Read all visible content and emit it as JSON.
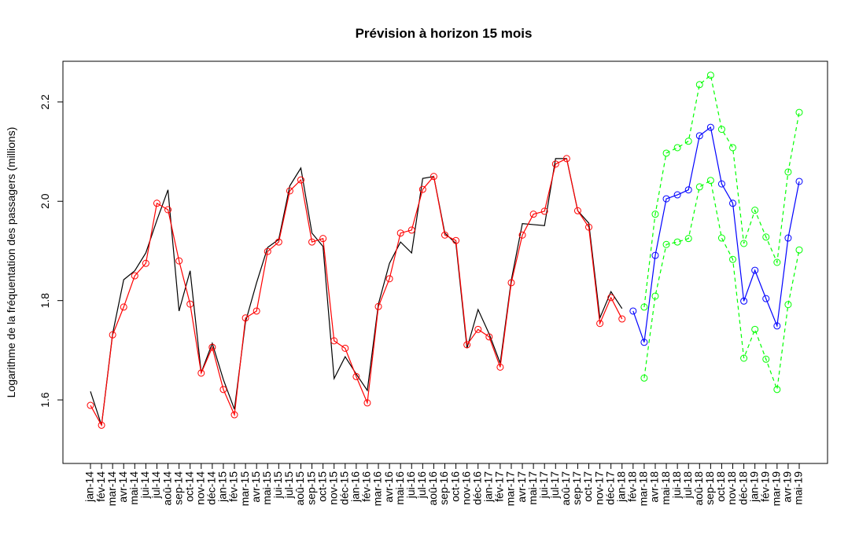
{
  "chart_data": {
    "type": "line",
    "title": "Prévision à horizon 15 mois",
    "y_label": "Logarithme de la fréquentation des passagers (millions)",
    "categories": [
      "jan-14",
      "fév-14",
      "mar-14",
      "avr-14",
      "mai-14",
      "jui-14",
      "jul-14",
      "aoû-14",
      "sep-14",
      "oct-14",
      "nov-14",
      "déc-14",
      "jan-15",
      "fév-15",
      "mar-15",
      "avr-15",
      "mai-15",
      "jui-15",
      "jul-15",
      "aoû-15",
      "sep-15",
      "oct-15",
      "nov-15",
      "déc-15",
      "jan-16",
      "fév-16",
      "mar-16",
      "avr-16",
      "mai-16",
      "jui-16",
      "jul-16",
      "aoû-16",
      "sep-16",
      "oct-16",
      "nov-16",
      "déc-16",
      "jan-17",
      "fév-17",
      "mar-17",
      "avr-17",
      "mai-17",
      "jui-17",
      "jul-17",
      "aoû-17",
      "sep-17",
      "oct-17",
      "nov-17",
      "déc-17",
      "jan-18",
      "fév-18",
      "mar-18",
      "avr-18",
      "mai-18",
      "jui-18",
      "jul-18",
      "aoû-18",
      "sep-18",
      "oct-18",
      "nov-18",
      "déc-18",
      "jan-19",
      "fév-19",
      "mar-19",
      "avr-19",
      "mai-19"
    ],
    "series": [
      {
        "color": "#000000",
        "marker": false,
        "dashed": false,
        "values": [
          1.617,
          1.549,
          1.733,
          1.842,
          1.86,
          1.896,
          1.962,
          2.023,
          1.779,
          1.86,
          1.655,
          1.714,
          1.641,
          1.581,
          1.757,
          1.836,
          1.907,
          1.923,
          2.031,
          2.067,
          1.936,
          1.909,
          1.643,
          1.687,
          1.652,
          1.619,
          1.793,
          1.875,
          1.918,
          1.896,
          2.046,
          2.05,
          1.936,
          1.915,
          1.704,
          1.782,
          1.733,
          1.674,
          1.841,
          1.955,
          1.953,
          1.951,
          2.086,
          2.086,
          1.981,
          1.956,
          1.765,
          1.818,
          1.784,
          null,
          null,
          null,
          null,
          null,
          null,
          null,
          null,
          null,
          null,
          null,
          null,
          null,
          null,
          null,
          null
        ]
      },
      {
        "color": "#ff0000",
        "marker": true,
        "dashed": false,
        "values": [
          1.589,
          1.549,
          1.731,
          1.787,
          1.85,
          1.875,
          1.996,
          1.983,
          1.88,
          1.793,
          1.654,
          1.706,
          1.621,
          1.57,
          1.765,
          1.779,
          1.899,
          1.918,
          2.021,
          2.043,
          1.918,
          1.925,
          1.719,
          1.704,
          1.647,
          1.594,
          1.788,
          1.844,
          1.936,
          1.942,
          2.024,
          2.05,
          1.932,
          1.921,
          1.711,
          1.742,
          1.727,
          1.666,
          1.836,
          1.932,
          1.974,
          1.98,
          2.075,
          2.086,
          1.981,
          1.948,
          1.754,
          1.806,
          1.763,
          null,
          null,
          null,
          null,
          null,
          null,
          null,
          null,
          null,
          null,
          null,
          null,
          null,
          null,
          null,
          null
        ]
      },
      {
        "color": "#0000ff",
        "marker": true,
        "dashed": false,
        "values": [
          null,
          null,
          null,
          null,
          null,
          null,
          null,
          null,
          null,
          null,
          null,
          null,
          null,
          null,
          null,
          null,
          null,
          null,
          null,
          null,
          null,
          null,
          null,
          null,
          null,
          null,
          null,
          null,
          null,
          null,
          null,
          null,
          null,
          null,
          null,
          null,
          null,
          null,
          null,
          null,
          null,
          null,
          null,
          null,
          null,
          null,
          null,
          null,
          null,
          1.779,
          1.716,
          1.891,
          2.005,
          2.013,
          2.023,
          2.132,
          2.149,
          2.035,
          1.996,
          1.799,
          1.861,
          1.804,
          1.749,
          1.926,
          2.04
        ]
      },
      {
        "color": "#00ff00",
        "marker": true,
        "dashed": true,
        "values": [
          null,
          null,
          null,
          null,
          null,
          null,
          null,
          null,
          null,
          null,
          null,
          null,
          null,
          null,
          null,
          null,
          null,
          null,
          null,
          null,
          null,
          null,
          null,
          null,
          null,
          null,
          null,
          null,
          null,
          null,
          null,
          null,
          null,
          null,
          null,
          null,
          null,
          null,
          null,
          null,
          null,
          null,
          null,
          null,
          null,
          null,
          null,
          null,
          null,
          null,
          1.787,
          1.974,
          2.097,
          2.108,
          2.121,
          2.235,
          2.254,
          2.145,
          2.108,
          1.915,
          1.982,
          1.928,
          1.877,
          2.059,
          2.179
        ]
      },
      {
        "color": "#00ff00",
        "marker": true,
        "dashed": true,
        "values": [
          null,
          null,
          null,
          null,
          null,
          null,
          null,
          null,
          null,
          null,
          null,
          null,
          null,
          null,
          null,
          null,
          null,
          null,
          null,
          null,
          null,
          null,
          null,
          null,
          null,
          null,
          null,
          null,
          null,
          null,
          null,
          null,
          null,
          null,
          null,
          null,
          null,
          null,
          null,
          null,
          null,
          null,
          null,
          null,
          null,
          null,
          null,
          null,
          null,
          null,
          1.644,
          1.809,
          1.913,
          1.918,
          1.925,
          2.029,
          2.042,
          1.926,
          1.883,
          1.684,
          1.742,
          1.682,
          1.621,
          1.792,
          1.902
        ]
      }
    ],
    "ylim": [
      1.472,
      2.282
    ],
    "yticks": [
      {
        "value": 1.6,
        "label": "1.6"
      },
      {
        "value": 1.8,
        "label": "1.8"
      },
      {
        "value": 2.0,
        "label": "2.0"
      },
      {
        "value": 2.2,
        "label": "2.2"
      }
    ],
    "grid": false
  }
}
